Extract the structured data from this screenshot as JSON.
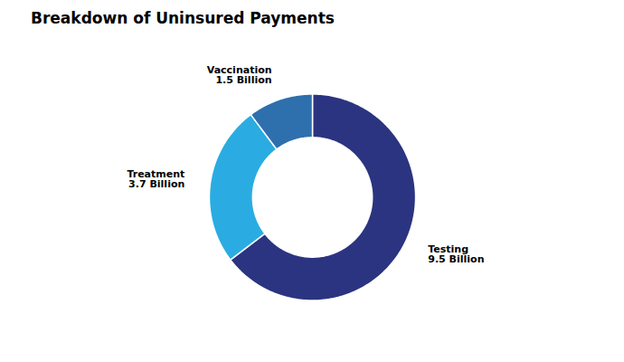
{
  "chart_data": {
    "type": "pie",
    "title": "Breakdown of Uninsured Payments",
    "categories": [
      "Testing",
      "Treatment",
      "Vaccination"
    ],
    "values": [
      9.5,
      3.7,
      1.5
    ],
    "value_labels": [
      "9.5 Billion",
      "3.7 Billion",
      "1.5 Billion"
    ],
    "colors": [
      "#2b3480",
      "#2aace2",
      "#2e6fad"
    ],
    "data_labels": true
  }
}
